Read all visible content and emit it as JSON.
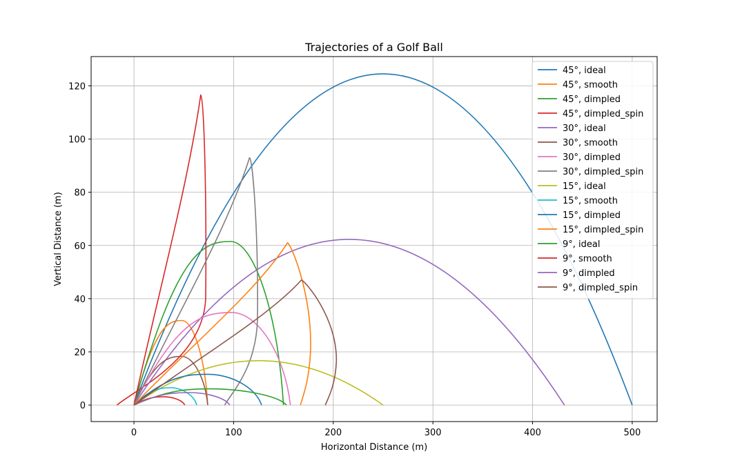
{
  "chart_data": {
    "type": "line",
    "title": "Trajectories of a Golf Ball",
    "xlabel": "Horizontal Distance (m)",
    "ylabel": "Vertical Distance (m)",
    "xlim": [
      -43,
      525
    ],
    "ylim": [
      -6.2,
      131
    ],
    "xticks": [
      0,
      100,
      200,
      300,
      400,
      500
    ],
    "yticks": [
      0,
      20,
      40,
      60,
      80,
      100,
      120
    ],
    "grid": true,
    "legend_position": "top-right",
    "series": [
      {
        "name": "45°, ideal",
        "color": "#1f77b4",
        "kind": "parabola",
        "x_end": 500,
        "apex_x": 250,
        "apex_y": 124.5
      },
      {
        "name": "45°, smooth",
        "color": "#ff7f0e",
        "kind": "skewed",
        "x_end": 74,
        "apex_x": 48,
        "apex_y": 31.8
      },
      {
        "name": "45°, dimpled",
        "color": "#2ca02c",
        "kind": "skewed",
        "x_end": 150,
        "apex_x": 97,
        "apex_y": 61.5
      },
      {
        "name": "45°, dimpled_spin",
        "color": "#d62728",
        "kind": "loop",
        "x_end": -17,
        "apex_x": 67,
        "apex_y": 116.6
      },
      {
        "name": "30°, ideal",
        "color": "#9467bd",
        "kind": "parabola",
        "x_end": 432,
        "apex_x": 216,
        "apex_y": 62.3
      },
      {
        "name": "30°, smooth",
        "color": "#8c564b",
        "kind": "skewed",
        "x_end": 74,
        "apex_x": 48,
        "apex_y": 18.3
      },
      {
        "name": "30°, dimpled",
        "color": "#e377c2",
        "kind": "skewed",
        "x_end": 157,
        "apex_x": 98,
        "apex_y": 34.8
      },
      {
        "name": "30°, dimpled_spin",
        "color": "#7f7f7f",
        "kind": "loop",
        "x_end": 91,
        "apex_x": 116,
        "apex_y": 93
      },
      {
        "name": "15°, ideal",
        "color": "#bcbd22",
        "kind": "parabola",
        "x_end": 250,
        "apex_x": 125,
        "apex_y": 16.7
      },
      {
        "name": "15°, smooth",
        "color": "#17becf",
        "kind": "skewed",
        "x_end": 63,
        "apex_x": 37,
        "apex_y": 6.5
      },
      {
        "name": "15°, dimpled",
        "color": "#1f77b4",
        "kind": "skewed",
        "x_end": 128,
        "apex_x": 74,
        "apex_y": 11.6
      },
      {
        "name": "15°, dimpled_spin",
        "color": "#ff7f0e",
        "kind": "loop",
        "x_end": 167,
        "apex_x": 154,
        "apex_y": 61
      },
      {
        "name": "9°, ideal",
        "color": "#2ca02c",
        "kind": "skewed",
        "x_end": 153,
        "apex_x": 76,
        "apex_y": 6.1
      },
      {
        "name": "9°, smooth",
        "color": "#d62728",
        "kind": "skewed",
        "x_end": 51,
        "apex_x": 30,
        "apex_y": 3.1
      },
      {
        "name": "9°, dimpled",
        "color": "#9467bd",
        "kind": "skewed",
        "x_end": 96,
        "apex_x": 56,
        "apex_y": 4.7
      },
      {
        "name": "9°, dimpled_spin",
        "color": "#8c564b",
        "kind": "loop",
        "x_end": 192,
        "apex_x": 168,
        "apex_y": 47
      }
    ]
  }
}
